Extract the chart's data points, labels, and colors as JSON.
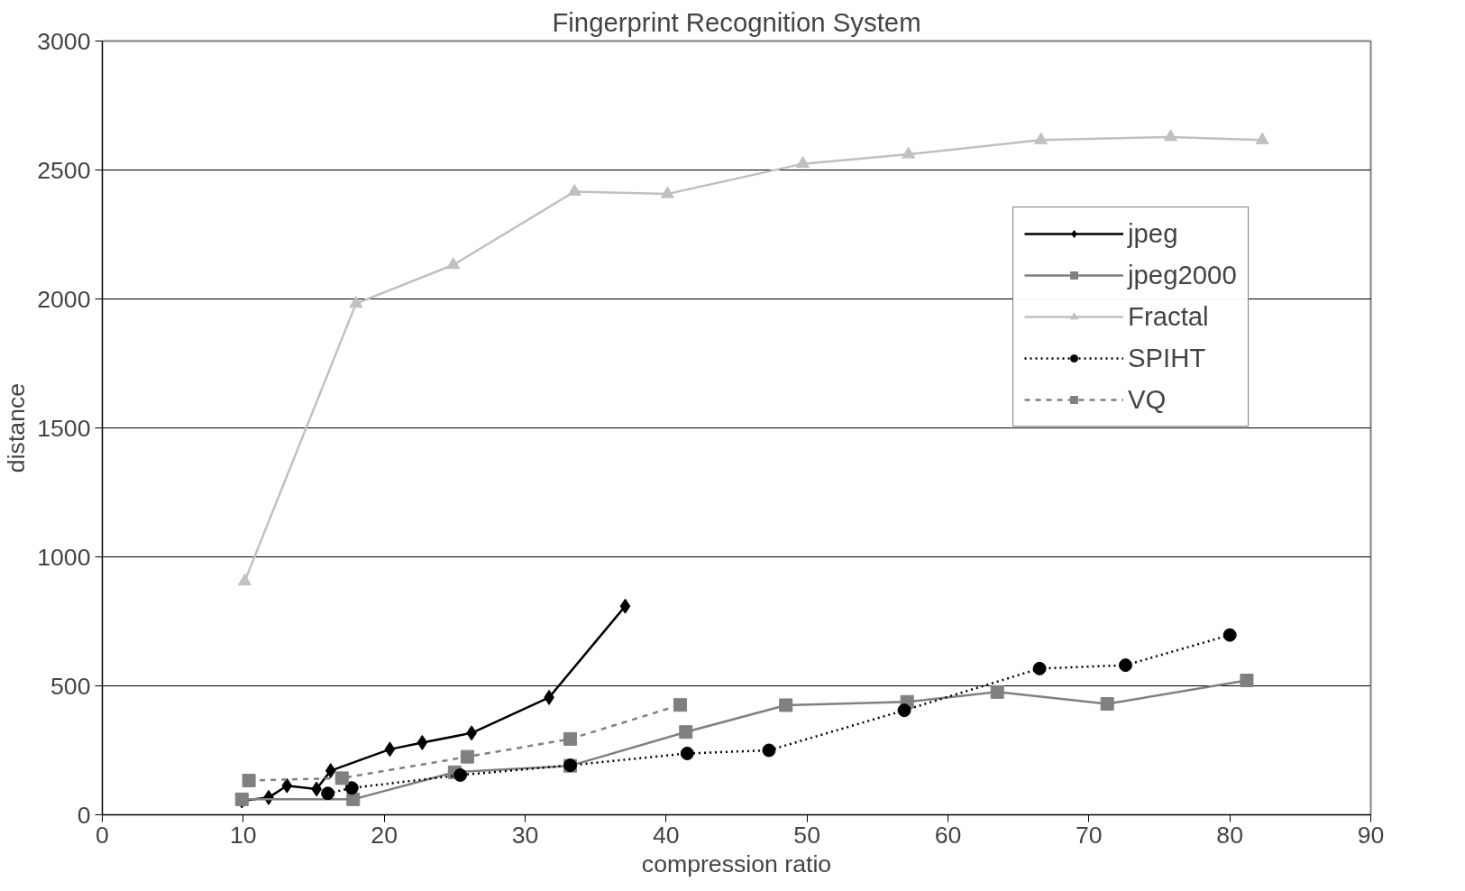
{
  "chart_data": {
    "type": "line",
    "title": "Fingerprint Recognition System",
    "xlabel": "compression ratio",
    "ylabel": "distance",
    "xlim": [
      0,
      90
    ],
    "xticks": [
      0,
      10,
      20,
      30,
      40,
      50,
      60,
      70,
      80,
      90
    ],
    "ylim": [
      0,
      3000
    ],
    "yticks": [
      0,
      500,
      1000,
      1500,
      2000,
      2500,
      3000
    ],
    "grid": "y",
    "legend": "right",
    "series": [
      {
        "name": "jpeg",
        "color": "#000000",
        "marker": "diamond",
        "line_style": "solid",
        "x": [
          9.9,
          11.8,
          13.1,
          15.2,
          16.2,
          20.4,
          22.7,
          26.2,
          31.7,
          37.1
        ],
        "values": [
          54,
          67,
          113,
          100,
          171,
          254,
          280,
          317,
          455,
          809
        ]
      },
      {
        "name": "jpeg2000",
        "color": "#808080",
        "marker": "square",
        "line_style": "solid",
        "x": [
          9.9,
          17.8,
          25.0,
          33.2,
          41.4,
          48.5,
          57.1,
          63.5,
          71.3,
          81.2
        ],
        "values": [
          60,
          60,
          165,
          190,
          321,
          425,
          438,
          476,
          430,
          521
        ]
      },
      {
        "name": "Fractal",
        "color": "#c0c0c0",
        "marker": "triangle",
        "line_style": "solid",
        "x": [
          10.1,
          18.0,
          24.9,
          33.5,
          40.1,
          49.7,
          57.2,
          66.6,
          75.8,
          82.3
        ],
        "values": [
          905,
          1982,
          2132,
          2416,
          2407,
          2524,
          2561,
          2616,
          2628,
          2616
        ]
      },
      {
        "name": "SPIHT",
        "color": "#000000",
        "marker": "circle",
        "line_style": "dotted",
        "x": [
          16.0,
          17.7,
          25.4,
          33.2,
          41.5,
          47.3,
          56.9,
          66.5,
          72.6,
          80.0
        ],
        "values": [
          83,
          104,
          154,
          192,
          238,
          250,
          405,
          567,
          580,
          697
        ]
      },
      {
        "name": "VQ",
        "color": "#808080",
        "marker": "square",
        "line_style": "dashed",
        "x": [
          10.4,
          17.0,
          25.9,
          33.2,
          41.0
        ],
        "values": [
          133,
          142,
          225,
          294,
          426
        ]
      }
    ]
  }
}
